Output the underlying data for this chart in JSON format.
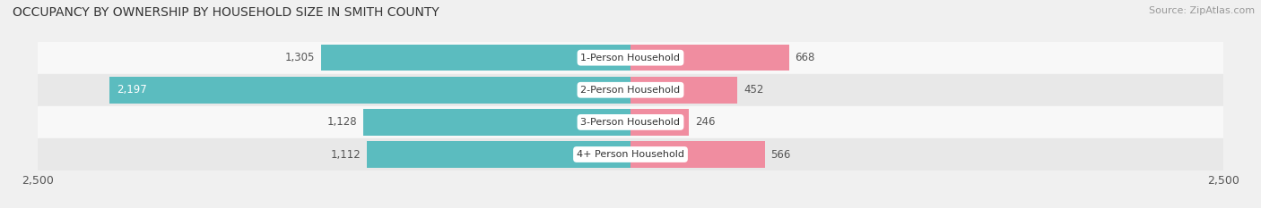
{
  "title": "OCCUPANCY BY OWNERSHIP BY HOUSEHOLD SIZE IN SMITH COUNTY",
  "source": "Source: ZipAtlas.com",
  "categories": [
    "1-Person Household",
    "2-Person Household",
    "3-Person Household",
    "4+ Person Household"
  ],
  "owner_values": [
    1305,
    2197,
    1128,
    1112
  ],
  "renter_values": [
    668,
    452,
    246,
    566
  ],
  "owner_color": "#5bbcbf",
  "renter_color": "#f08da0",
  "xlim": 2500,
  "title_fontsize": 10,
  "source_fontsize": 8,
  "bar_label_fontsize": 8.5,
  "category_fontsize": 8,
  "axis_label_fontsize": 9,
  "background_color": "#f0f0f0",
  "bar_height": 0.82,
  "row_bg_colors": [
    "#f8f8f8",
    "#e8e8e8",
    "#f8f8f8",
    "#e8e8e8"
  ],
  "owner_label_inside_threshold": 1400
}
